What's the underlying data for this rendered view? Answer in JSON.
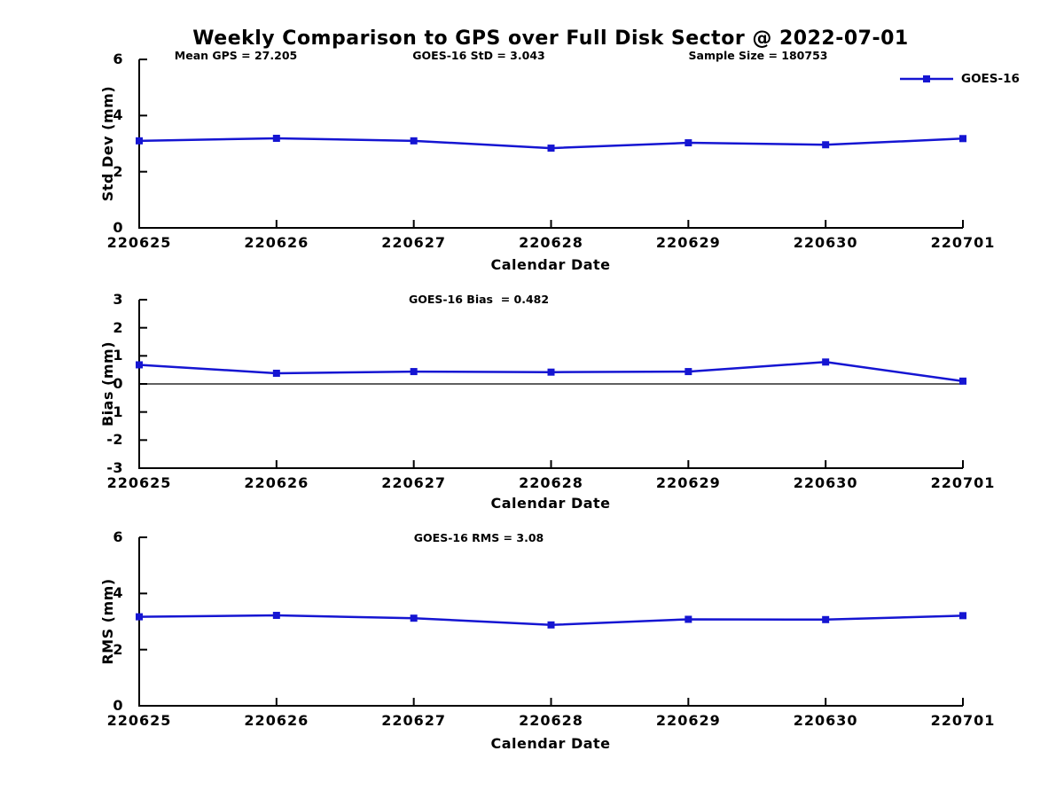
{
  "title": "Weekly Comparison to GPS over Full Disk Sector @ 2022-07-01",
  "legend": {
    "label": "GOES-16",
    "position": "top-right"
  },
  "colors": {
    "line": "#1515d2",
    "axis": "#000000",
    "text": "#000000",
    "zero_line": "#000000"
  },
  "chart_data": [
    {
      "type": "line",
      "title": "",
      "categories": [
        "220625",
        "220626",
        "220627",
        "220628",
        "220629",
        "220630",
        "220701"
      ],
      "series": [
        {
          "name": "GOES-16",
          "values": [
            3.1,
            3.19,
            3.1,
            2.84,
            3.03,
            2.96,
            3.18
          ]
        }
      ],
      "xlabel": "Calendar Date",
      "ylabel": "Std Dev (mm)",
      "ylim": [
        0,
        6
      ],
      "yticks": [
        0,
        2,
        4,
        6
      ],
      "grid": false,
      "zero_line": false,
      "show_legend": true,
      "marker": "square",
      "annotations": [
        "Mean GPS = 27.205",
        "GOES-16 StD = 3.043",
        "Sample Size = 180753"
      ]
    },
    {
      "type": "line",
      "title": "",
      "categories": [
        "220625",
        "220626",
        "220627",
        "220628",
        "220629",
        "220630",
        "220701"
      ],
      "series": [
        {
          "name": "GOES-16",
          "values": [
            0.68,
            0.38,
            0.44,
            0.42,
            0.44,
            0.78,
            0.1
          ]
        }
      ],
      "xlabel": "Calendar Date",
      "ylabel": "Bias (mm)",
      "ylim": [
        -3,
        3
      ],
      "yticks": [
        -3,
        -2,
        -1,
        0,
        1,
        2,
        3
      ],
      "grid": false,
      "zero_line": true,
      "show_legend": false,
      "marker": "square",
      "annotations": [
        "GOES-16 Bias  = 0.482"
      ]
    },
    {
      "type": "line",
      "title": "",
      "categories": [
        "220625",
        "220626",
        "220627",
        "220628",
        "220629",
        "220630",
        "220701"
      ],
      "series": [
        {
          "name": "GOES-16",
          "values": [
            3.17,
            3.22,
            3.12,
            2.88,
            3.08,
            3.07,
            3.21
          ]
        }
      ],
      "xlabel": "Calendar Date",
      "ylabel": "RMS (mm)",
      "ylim": [
        0,
        6
      ],
      "yticks": [
        0,
        2,
        4,
        6
      ],
      "grid": false,
      "zero_line": false,
      "show_legend": false,
      "marker": "square",
      "annotations": [
        "GOES-16 RMS = 3.08"
      ]
    }
  ]
}
